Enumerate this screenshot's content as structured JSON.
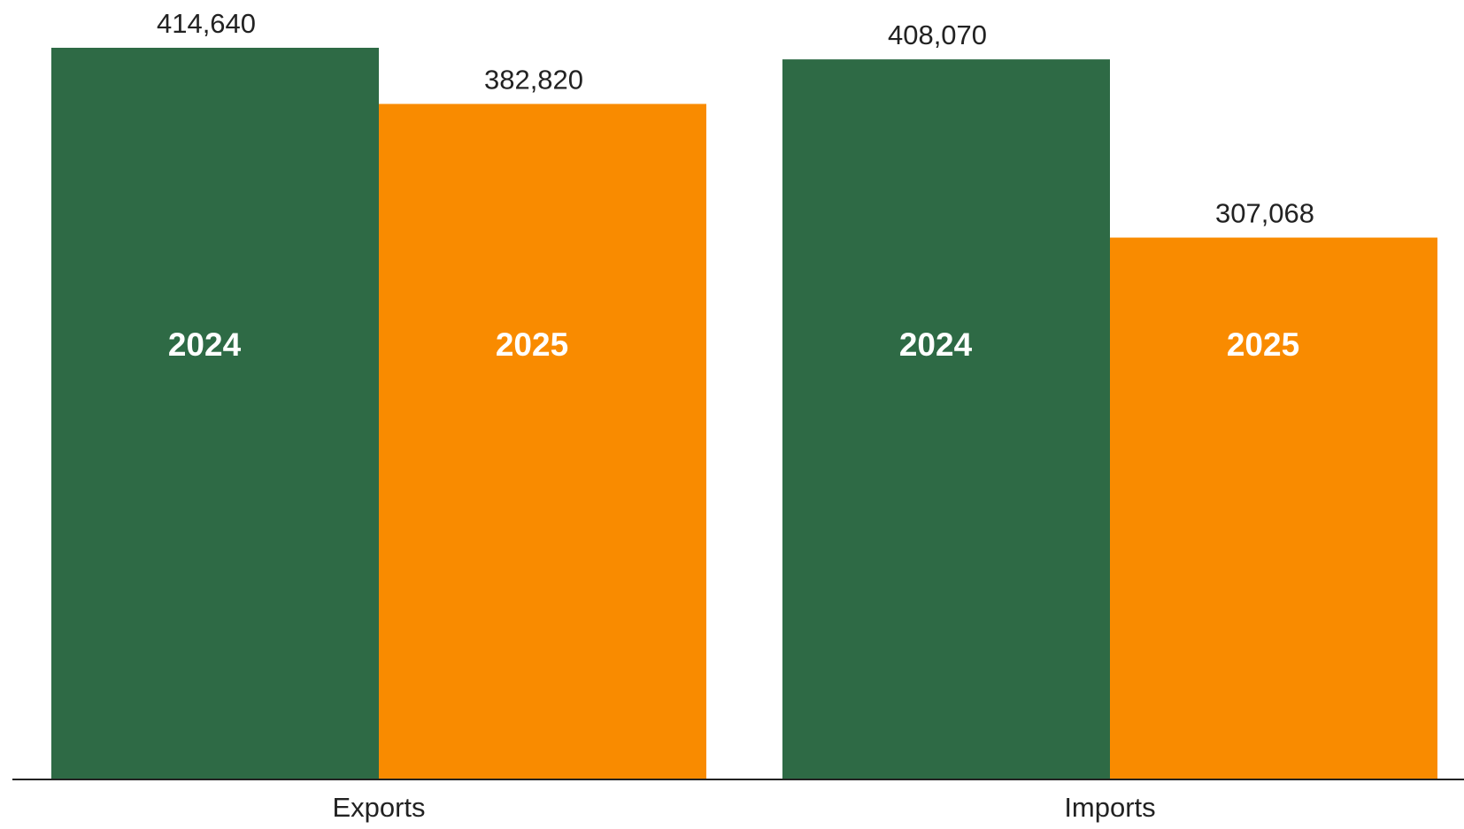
{
  "chart_data": {
    "type": "bar",
    "title": "",
    "xlabel": "",
    "ylabel": "",
    "categories": [
      "Exports",
      "Imports"
    ],
    "series": [
      {
        "name": "2024",
        "color": "#2e6a45",
        "values": [
          414640,
          408070
        ]
      },
      {
        "name": "2025",
        "color": "#f98b00",
        "values": [
          382820,
          307068
        ]
      }
    ],
    "value_labels": [
      [
        "414,640",
        "408,070"
      ],
      [
        "382,820",
        "307,068"
      ]
    ],
    "ylim": [
      0,
      414640
    ],
    "grid": false,
    "legend": "inside bars",
    "colors": {
      "axis": "#222222",
      "text": "#222222",
      "bar_label": "#ffffff"
    }
  }
}
